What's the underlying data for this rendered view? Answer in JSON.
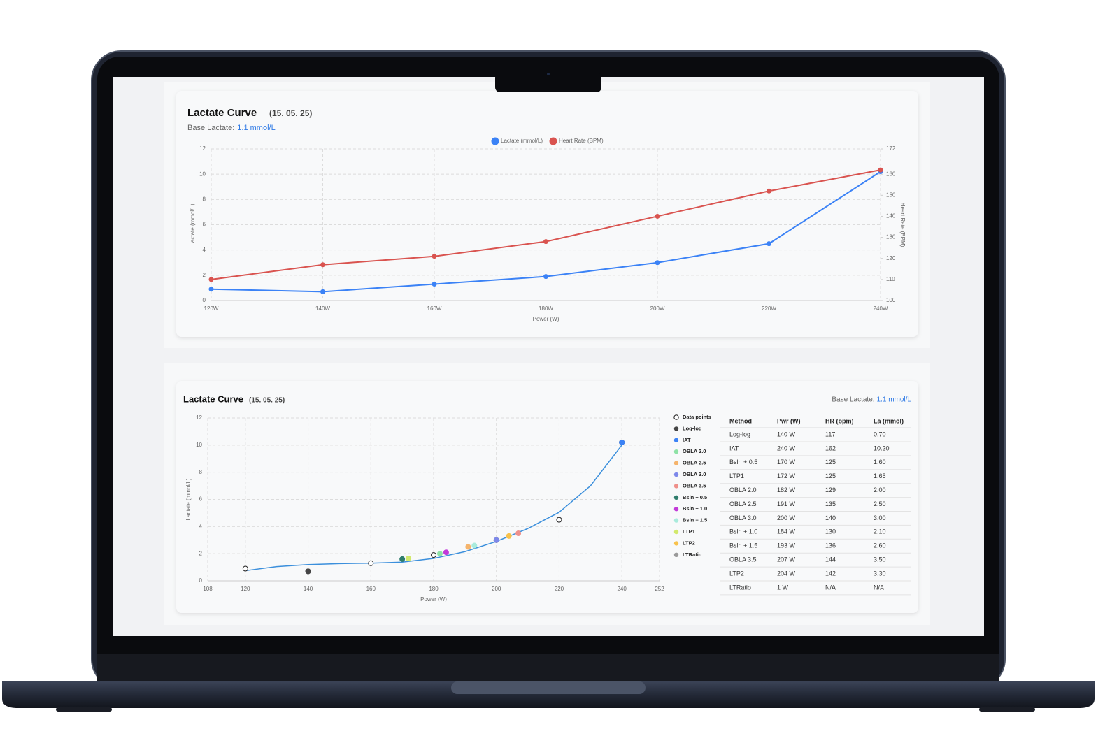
{
  "chart_data": [
    {
      "type": "line",
      "title": "Lactate Curve",
      "subtitle": "(15. 05. 25)",
      "base_label": "Base Lactate:",
      "base_value": "1.1 mmol/L",
      "xlabel": "Power (W)",
      "ylabel": "Lactate (mmol/L)",
      "y2label": "Heart Rate (BPM)",
      "categories": [
        "120W",
        "140W",
        "160W",
        "180W",
        "200W",
        "220W",
        "240W"
      ],
      "series": [
        {
          "name": "Lactate (mmol/L)",
          "color": "#3b82f6",
          "values": [
            0.9,
            0.7,
            1.3,
            1.9,
            3.0,
            4.5,
            10.2
          ]
        },
        {
          "name": "Heart Rate (BPM)",
          "color": "#d9534f",
          "axis": "y2",
          "values": [
            110,
            117,
            121,
            128,
            140,
            152,
            162
          ]
        }
      ],
      "ylim": [
        0,
        12
      ],
      "yticks": [
        0,
        2,
        4,
        6,
        8,
        10,
        12
      ],
      "y2lim": [
        100,
        172
      ],
      "y2ticks": [
        100,
        110,
        120,
        130,
        140,
        150,
        160,
        172
      ],
      "grid": true,
      "legend": "top"
    },
    {
      "type": "scatter",
      "title": "Lactate Curve",
      "subtitle": "(15. 05. 25)",
      "base_label": "Base Lactate:",
      "base_value": "1.1 mmol/L",
      "xlabel": "Power (W)",
      "ylabel": "Lactate (mmol/L)",
      "xlim": [
        108,
        252
      ],
      "xticks": [
        108,
        120,
        140,
        160,
        180,
        200,
        220,
        240,
        252
      ],
      "ylim": [
        0,
        12
      ],
      "yticks": [
        0,
        2,
        4,
        6,
        8,
        10,
        12
      ],
      "grid": true,
      "legend": "right",
      "fit": {
        "color": "#3b8fdc",
        "x": [
          120,
          130,
          140,
          150,
          160,
          170,
          180,
          190,
          200,
          210,
          220,
          230,
          240
        ],
        "values": [
          0.75,
          1.05,
          1.2,
          1.27,
          1.3,
          1.38,
          1.65,
          2.15,
          2.9,
          3.85,
          5.05,
          7.0,
          10.0
        ]
      },
      "series": [
        {
          "name": "Data points",
          "color": "#ffffff",
          "hollow": true,
          "x": [
            120,
            140,
            160,
            180,
            200,
            220,
            240
          ],
          "values": [
            0.9,
            0.7,
            1.3,
            1.9,
            3.0,
            4.5,
            10.2
          ]
        },
        {
          "name": "Log-log",
          "color": "#454545",
          "x": [
            140
          ],
          "values": [
            0.7
          ]
        },
        {
          "name": "IAT",
          "color": "#3b82f6",
          "x": [
            240
          ],
          "values": [
            10.2
          ]
        },
        {
          "name": "OBLA 2.0",
          "color": "#8ee2a6",
          "x": [
            182
          ],
          "values": [
            2.0
          ]
        },
        {
          "name": "OBLA 2.5",
          "color": "#f5b46c",
          "x": [
            191
          ],
          "values": [
            2.5
          ]
        },
        {
          "name": "OBLA 3.0",
          "color": "#7d88ea",
          "x": [
            200
          ],
          "values": [
            3.0
          ]
        },
        {
          "name": "OBLA 3.5",
          "color": "#ef908b",
          "x": [
            207
          ],
          "values": [
            3.5
          ]
        },
        {
          "name": "Bsln + 0.5",
          "color": "#2f7d6c",
          "x": [
            170
          ],
          "values": [
            1.6
          ]
        },
        {
          "name": "Bsln + 1.0",
          "color": "#c23ad8",
          "x": [
            184
          ],
          "values": [
            2.1
          ]
        },
        {
          "name": "Bsln + 1.5",
          "color": "#a9ebdc",
          "x": [
            193
          ],
          "values": [
            2.6
          ]
        },
        {
          "name": "LTP1",
          "color": "#d2e96c",
          "x": [
            172
          ],
          "values": [
            1.65
          ]
        },
        {
          "name": "LTP2",
          "color": "#f8c24c",
          "x": [
            204
          ],
          "values": [
            3.3
          ]
        },
        {
          "name": "LTRatio",
          "color": "#9a9a9a",
          "x": [],
          "values": []
        }
      ]
    }
  ],
  "table": {
    "header": [
      "Method",
      "Pwr (W)",
      "HR (bpm)",
      "La (mmol)"
    ],
    "rows": [
      [
        "Log-log",
        "140 W",
        "117",
        "0.70"
      ],
      [
        "IAT",
        "240 W",
        "162",
        "10.20"
      ],
      [
        "Bsln + 0.5",
        "170 W",
        "125",
        "1.60"
      ],
      [
        "LTP1",
        "172 W",
        "125",
        "1.65"
      ],
      [
        "OBLA 2.0",
        "182 W",
        "129",
        "2.00"
      ],
      [
        "OBLA 2.5",
        "191 W",
        "135",
        "2.50"
      ],
      [
        "OBLA 3.0",
        "200 W",
        "140",
        "3.00"
      ],
      [
        "Bsln + 1.0",
        "184 W",
        "130",
        "2.10"
      ],
      [
        "Bsln + 1.5",
        "193 W",
        "136",
        "2.60"
      ],
      [
        "OBLA 3.5",
        "207 W",
        "144",
        "3.50"
      ],
      [
        "LTP2",
        "204 W",
        "142",
        "3.30"
      ],
      [
        "LTRatio",
        "1 W",
        "N/A",
        "N/A"
      ]
    ]
  }
}
